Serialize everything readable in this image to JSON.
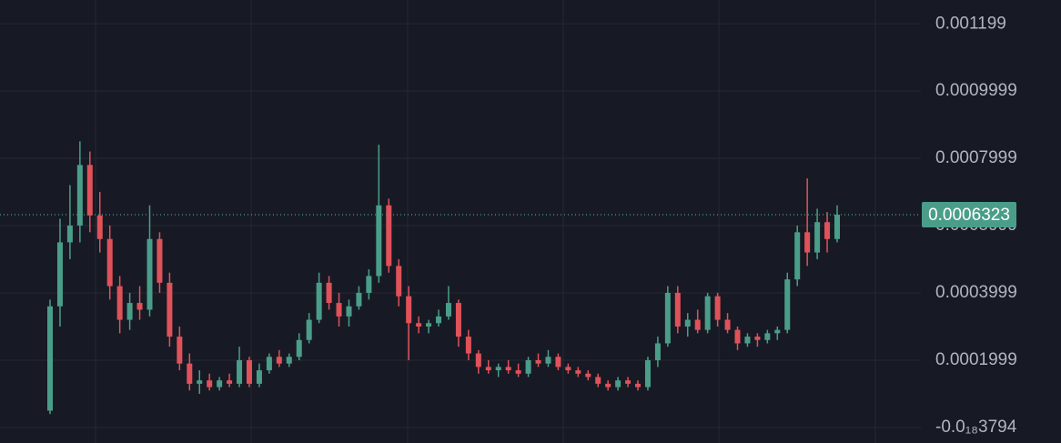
{
  "chart_data": {
    "type": "candlestick",
    "ylim": [
      -4.6e-05,
      0.00127
    ],
    "yticks": [
      {
        "value": -3.794e-19,
        "label": "-0.0₁₈3794"
      },
      0.0001999,
      0.0003999,
      0.0005999,
      0.0007999,
      0.0009999,
      0.001199
    ],
    "grid": true,
    "up_color": "#4a9e89",
    "down_color": "#e0525a",
    "last_price": 0.0006323,
    "candles": [
      [
        5e-05,
        0.00038,
        4e-05,
        0.00036
      ],
      [
        0.00036,
        0.00062,
        0.0003,
        0.00055
      ],
      [
        0.00055,
        0.00072,
        0.0005,
        0.0006
      ],
      [
        0.0006,
        0.00085,
        0.00055,
        0.00078
      ],
      [
        0.00078,
        0.00082,
        0.00058,
        0.00063
      ],
      [
        0.00063,
        0.0007,
        0.00052,
        0.00056
      ],
      [
        0.00056,
        0.0006,
        0.00038,
        0.00042
      ],
      [
        0.00042,
        0.00045,
        0.00028,
        0.00032
      ],
      [
        0.00032,
        0.0004,
        0.00029,
        0.00037
      ],
      [
        0.00037,
        0.00042,
        0.00032,
        0.00035
      ],
      [
        0.00035,
        0.00066,
        0.00033,
        0.00056
      ],
      [
        0.00056,
        0.00058,
        0.0004,
        0.00043
      ],
      [
        0.00043,
        0.00046,
        0.00024,
        0.00027
      ],
      [
        0.00027,
        0.0003,
        0.00017,
        0.00019
      ],
      [
        0.00019,
        0.00022,
        0.00011,
        0.00013
      ],
      [
        0.00013,
        0.00017,
        0.0001,
        0.00014
      ],
      [
        0.00014,
        0.00016,
        0.00011,
        0.00012
      ],
      [
        0.00012,
        0.00015,
        0.00011,
        0.00014
      ],
      [
        0.00014,
        0.00016,
        0.00012,
        0.00013
      ],
      [
        0.00013,
        0.00024,
        0.00012,
        0.0002
      ],
      [
        0.0002,
        0.00021,
        0.00012,
        0.00013
      ],
      [
        0.00013,
        0.00019,
        0.00012,
        0.00017
      ],
      [
        0.00017,
        0.00022,
        0.00016,
        0.00021
      ],
      [
        0.00021,
        0.00023,
        0.00018,
        0.00019
      ],
      [
        0.00019,
        0.00022,
        0.00018,
        0.00021
      ],
      [
        0.00021,
        0.00028,
        0.0002,
        0.00026
      ],
      [
        0.00026,
        0.00034,
        0.00025,
        0.00032
      ],
      [
        0.00032,
        0.00046,
        0.00031,
        0.00043
      ],
      [
        0.00043,
        0.00045,
        0.00035,
        0.00037
      ],
      [
        0.00037,
        0.0004,
        0.0003,
        0.00033
      ],
      [
        0.00033,
        0.00038,
        0.0003,
        0.00036
      ],
      [
        0.00036,
        0.00042,
        0.00035,
        0.0004
      ],
      [
        0.0004,
        0.00047,
        0.00038,
        0.00045
      ],
      [
        0.00045,
        0.00084,
        0.00043,
        0.00066
      ],
      [
        0.00066,
        0.00068,
        0.00046,
        0.00048
      ],
      [
        0.00048,
        0.0005,
        0.00036,
        0.00039
      ],
      [
        0.00039,
        0.00042,
        0.0002,
        0.00031
      ],
      [
        0.00031,
        0.00033,
        0.00028,
        0.0003
      ],
      [
        0.0003,
        0.00032,
        0.00028,
        0.00031
      ],
      [
        0.00031,
        0.00035,
        0.0003,
        0.00033
      ],
      [
        0.00033,
        0.00042,
        0.00032,
        0.00037
      ],
      [
        0.00037,
        0.00038,
        0.00024,
        0.00027
      ],
      [
        0.00027,
        0.00029,
        0.0002,
        0.00022
      ],
      [
        0.00022,
        0.00023,
        0.00016,
        0.00018
      ],
      [
        0.00018,
        0.0002,
        0.00016,
        0.00017
      ],
      [
        0.00017,
        0.00019,
        0.00015,
        0.00018
      ],
      [
        0.00018,
        0.0002,
        0.00016,
        0.00017
      ],
      [
        0.00017,
        0.00019,
        0.00015,
        0.00016
      ],
      [
        0.00016,
        0.00021,
        0.00015,
        0.0002
      ],
      [
        0.0002,
        0.00022,
        0.00018,
        0.00019
      ],
      [
        0.00019,
        0.00023,
        0.00018,
        0.00021
      ],
      [
        0.00021,
        0.00022,
        0.00017,
        0.00018
      ],
      [
        0.00018,
        0.00019,
        0.00016,
        0.00017
      ],
      [
        0.00017,
        0.00018,
        0.00015,
        0.00016
      ],
      [
        0.00016,
        0.00017,
        0.00014,
        0.00015
      ],
      [
        0.00015,
        0.00016,
        0.00012,
        0.00013
      ],
      [
        0.00013,
        0.00014,
        0.00011,
        0.00012
      ],
      [
        0.00012,
        0.00015,
        0.00011,
        0.00014
      ],
      [
        0.00014,
        0.00015,
        0.00012,
        0.00013
      ],
      [
        0.00013,
        0.00014,
        0.00011,
        0.00012
      ],
      [
        0.00012,
        0.00021,
        0.00011,
        0.0002
      ],
      [
        0.0002,
        0.00027,
        0.00018,
        0.00025
      ],
      [
        0.00025,
        0.00042,
        0.00024,
        0.0004
      ],
      [
        0.0004,
        0.00042,
        0.00028,
        0.0003
      ],
      [
        0.0003,
        0.00034,
        0.00027,
        0.00032
      ],
      [
        0.00032,
        0.00035,
        0.00028,
        0.00029
      ],
      [
        0.00029,
        0.0004,
        0.00028,
        0.00039
      ],
      [
        0.00039,
        0.0004,
        0.0003,
        0.00032
      ],
      [
        0.00032,
        0.00034,
        0.00028,
        0.00029
      ],
      [
        0.00029,
        0.0003,
        0.00023,
        0.00025
      ],
      [
        0.00025,
        0.00028,
        0.00024,
        0.00027
      ],
      [
        0.00027,
        0.00028,
        0.00024,
        0.00026
      ],
      [
        0.00026,
        0.00029,
        0.00025,
        0.00028
      ],
      [
        0.00028,
        0.0003,
        0.00026,
        0.00029
      ],
      [
        0.00029,
        0.00046,
        0.00028,
        0.00044
      ],
      [
        0.00044,
        0.0006,
        0.00042,
        0.00058
      ],
      [
        0.00058,
        0.00074,
        0.00048,
        0.00052
      ],
      [
        0.00052,
        0.00065,
        0.0005,
        0.00061
      ],
      [
        0.00061,
        0.00064,
        0.00052,
        0.00056
      ],
      [
        0.00056,
        0.00066,
        0.00055,
        0.0006323
      ]
    ]
  }
}
